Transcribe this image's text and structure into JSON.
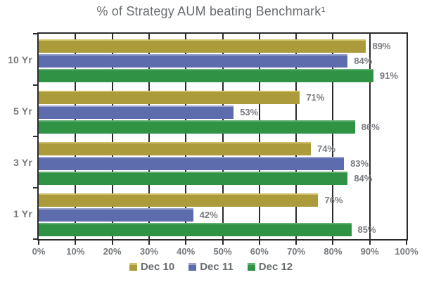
{
  "title": "% of Strategy AUM beating Benchmark¹",
  "chart_data": {
    "type": "bar",
    "orientation": "horizontal",
    "title": "% of Strategy AUM beating Benchmark¹",
    "categories": [
      "10 Yr",
      "5 Yr",
      "3 Yr",
      "1 Yr"
    ],
    "series": [
      {
        "name": "Dec 10",
        "color": "#AB9B3B",
        "highlight": "#CDC167",
        "values": [
          89,
          71,
          74,
          76
        ]
      },
      {
        "name": "Dec 11",
        "color": "#5C6CAC",
        "highlight": "#99A3CB",
        "values": [
          84,
          53,
          83,
          42
        ]
      },
      {
        "name": "Dec 12",
        "color": "#2F9244",
        "highlight": "#63AE73",
        "values": [
          91,
          86,
          84,
          85
        ]
      }
    ],
    "value_suffix": "%",
    "xlim": [
      0,
      100
    ],
    "x_ticks": [
      "0%",
      "10%",
      "20%",
      "30%",
      "40%",
      "50%",
      "60%",
      "70%",
      "80%",
      "90%",
      "100%"
    ],
    "gridlines_percent": [
      10,
      20,
      30,
      40,
      50,
      60,
      70,
      80,
      90
    ],
    "grid": true,
    "legend_position": "bottom",
    "data_labels": [
      "89%",
      "84%",
      "91%",
      "71%",
      "53%",
      "86%",
      "74%",
      "83%",
      "84%",
      "76%",
      "42%",
      "85%"
    ]
  },
  "colors": {
    "axis_line": "#2b2b2b",
    "title_text": "#696c6f",
    "label_text": "#76797c",
    "value_label_text": "#797c80",
    "legend_text": "#6a6d70",
    "background": "#ffffff"
  }
}
